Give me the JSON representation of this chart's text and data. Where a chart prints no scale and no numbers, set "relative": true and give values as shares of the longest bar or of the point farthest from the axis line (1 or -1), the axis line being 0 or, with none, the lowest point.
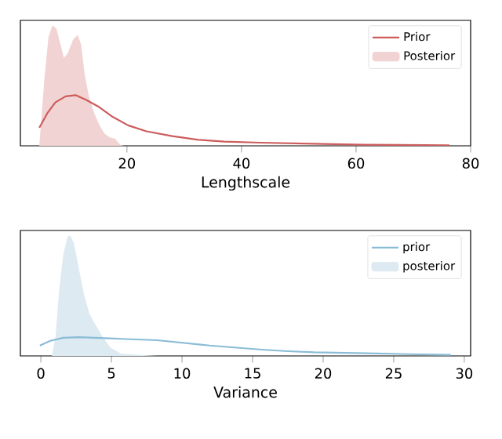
{
  "chart_data": [
    {
      "type": "line",
      "relative": true,
      "xlabel": "Lengthscale",
      "xlim": [
        1.4,
        80
      ],
      "xticks": [
        20,
        40,
        60,
        80
      ],
      "tick_labels": "x",
      "legend": "top right",
      "series": [
        {
          "name": "Prior",
          "color": "#cd5c5c",
          "x": [
            4.7,
            6.1,
            7.5,
            9.3,
            11.1,
            12.9,
            15.2,
            17.5,
            20.2,
            23.4,
            27.9,
            32.5,
            37,
            43.4,
            52.5,
            61.5,
            76.3
          ],
          "values": [
            0.15,
            0.27,
            0.36,
            0.41,
            0.42,
            0.38,
            0.32,
            0.24,
            0.17,
            0.12,
            0.08,
            0.05,
            0.035,
            0.026,
            0.017,
            0.009,
            0.004
          ]
        },
        {
          "name": "Posterior",
          "type": "area",
          "color": "#f2d3d3",
          "x": [
            4.7,
            5.6,
            6.3,
            7.0,
            7.7,
            8.4,
            9.0,
            9.7,
            10.6,
            11.4,
            12.0,
            12.6,
            13.4,
            14.3,
            15.2,
            16.1,
            17.0,
            17.9,
            18.8,
            19.4
          ],
          "values": [
            0,
            0.56,
            0.9,
            1.0,
            0.97,
            0.84,
            0.73,
            0.77,
            0.88,
            0.92,
            0.84,
            0.6,
            0.4,
            0.27,
            0.17,
            0.1,
            0.07,
            0.06,
            0.01,
            0
          ]
        }
      ]
    },
    {
      "type": "line",
      "relative": true,
      "xlabel": "Variance",
      "xlim": [
        -1.45,
        30.45
      ],
      "xticks": [
        0,
        5,
        10,
        15,
        20,
        25,
        30
      ],
      "tick_labels": "x",
      "legend": "top right",
      "series": [
        {
          "name": "prior",
          "color": "#8abcd6",
          "x": [
            -0.07,
            0.67,
            1.59,
            2.7,
            4.55,
            6.4,
            8.25,
            10.1,
            11.95,
            13.8,
            15.65,
            17.5,
            19.35,
            23.05,
            26.75,
            29.05
          ],
          "values": [
            0.086,
            0.125,
            0.15,
            0.155,
            0.147,
            0.138,
            0.13,
            0.108,
            0.086,
            0.069,
            0.052,
            0.039,
            0.03,
            0.022,
            0.013,
            0.009
          ]
        },
        {
          "name": "posterior",
          "type": "area",
          "color": "#ddeaf1",
          "x": [
            0.78,
            1.04,
            1.3,
            1.59,
            1.89,
            2.07,
            2.33,
            2.7,
            3.07,
            3.44,
            3.81,
            4.37,
            4.92,
            5.66,
            6.77,
            8.25
          ],
          "values": [
            0,
            0.16,
            0.55,
            0.84,
            0.99,
            1.0,
            0.94,
            0.72,
            0.5,
            0.35,
            0.27,
            0.16,
            0.07,
            0.02,
            0.01,
            0
          ]
        }
      ]
    }
  ]
}
